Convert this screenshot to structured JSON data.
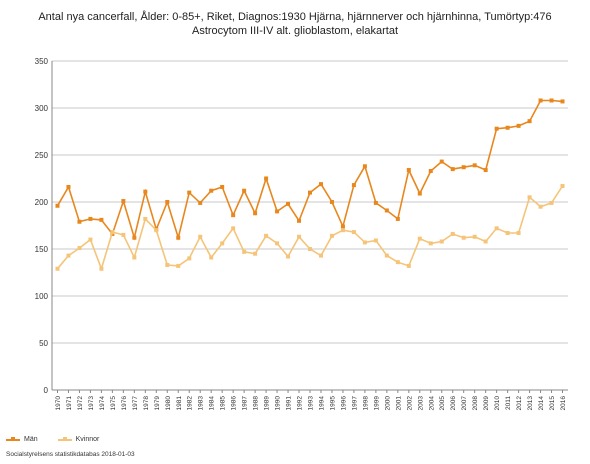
{
  "title_line1": "Antal nya cancerfall, Ålder: 0-85+, Riket, Diagnos:1930 Hjärna, hjärnnerver och hjärnhinna, Tumörtyp:476",
  "title_line2": "Astrocytom III-IV alt. glioblastom, elakartat",
  "source": "Socialstyrelsens statistikdatabas 2018-01-03",
  "chart_data": {
    "type": "line",
    "title": "Antal nya cancerfall, Ålder: 0-85+, Riket, Diagnos:1930 Hjärna, hjärnnerver och hjärnhinna, Tumörtyp:476 Astrocytom III-IV alt. glioblastom, elakartat",
    "xlabel": "",
    "ylabel": "",
    "ylim": [
      0,
      350
    ],
    "yticks": [
      0,
      50,
      100,
      150,
      200,
      250,
      300,
      350
    ],
    "grid": true,
    "legend_position": "bottom-left",
    "categories": [
      "1970",
      "1971",
      "1972",
      "1973",
      "1974",
      "1975",
      "1976",
      "1977",
      "1978",
      "1979",
      "1980",
      "1981",
      "1982",
      "1983",
      "1984",
      "1985",
      "1986",
      "1987",
      "1988",
      "1989",
      "1990",
      "1991",
      "1992",
      "1993",
      "1994",
      "1995",
      "1996",
      "1997",
      "1998",
      "1999",
      "2000",
      "2001",
      "2002",
      "2003",
      "2004",
      "2005",
      "2006",
      "2007",
      "2008",
      "2009",
      "2010",
      "2011",
      "2012",
      "2013",
      "2014",
      "2015",
      "2016"
    ],
    "series": [
      {
        "name": "Män",
        "color": "#e8871e",
        "values": [
          196,
          216,
          179,
          182,
          181,
          166,
          201,
          162,
          211,
          171,
          200,
          162,
          210,
          199,
          212,
          216,
          186,
          212,
          188,
          225,
          190,
          198,
          180,
          210,
          219,
          200,
          174,
          218,
          238,
          199,
          191,
          182,
          234,
          209,
          233,
          243,
          235,
          237,
          239,
          234,
          278,
          279,
          281,
          286,
          308,
          308,
          307
        ]
      },
      {
        "name": "Kvinnor",
        "color": "#f5c478",
        "values": [
          129,
          143,
          151,
          160,
          129,
          168,
          165,
          141,
          182,
          170,
          133,
          132,
          140,
          163,
          141,
          156,
          172,
          147,
          145,
          164,
          156,
          142,
          163,
          150,
          143,
          164,
          170,
          168,
          157,
          159,
          143,
          136,
          132,
          161,
          156,
          158,
          166,
          162,
          163,
          158,
          172,
          167,
          167,
          205,
          195,
          199,
          217
        ]
      }
    ]
  }
}
